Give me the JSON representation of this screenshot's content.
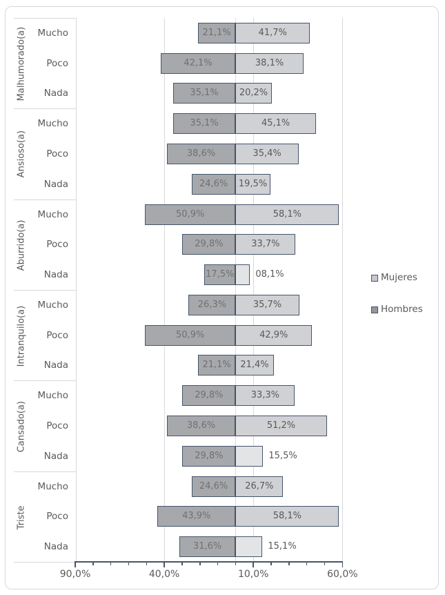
{
  "chart_data": {
    "type": "bar",
    "variant": "horizontal-diverging-tornado",
    "title": "",
    "legend": [
      {
        "label": "Mujeres",
        "color": "#D0D1D4",
        "side": "right"
      },
      {
        "label": "Hombres",
        "color": "#A7A8AB",
        "side": "left"
      }
    ],
    "legend_position": "right",
    "grid": true,
    "x_axis": {
      "range": [
        -90,
        60
      ],
      "minor_unit": 10,
      "tick_values": [
        -90,
        -40,
        10,
        60
      ],
      "tick_labels": [
        "90,0%",
        "40,0%",
        "10,0%",
        "60,0%"
      ],
      "gridline_values": [
        -40,
        0,
        10,
        60
      ]
    },
    "groups": [
      {
        "label": "Malhumorado(a)",
        "rows": [
          {
            "label": "Mucho",
            "hombres": 21.1,
            "hombres_label": "21,1%",
            "mujeres": 41.7,
            "mujeres_label": "41,7%",
            "mujeres_label_outside": false,
            "mujeres_light": false
          },
          {
            "label": "Poco",
            "hombres": 42.1,
            "hombres_label": "42,1%",
            "mujeres": 38.1,
            "mujeres_label": "38,1%",
            "mujeres_label_outside": false,
            "mujeres_light": false
          },
          {
            "label": "Nada",
            "hombres": 35.1,
            "hombres_label": "35,1%",
            "mujeres": 20.2,
            "mujeres_label": "20,2%",
            "mujeres_label_outside": false,
            "mujeres_light": false
          }
        ]
      },
      {
        "label": "Ansioso(a)",
        "rows": [
          {
            "label": "Mucho",
            "hombres": 35.1,
            "hombres_label": "35,1%",
            "mujeres": 45.1,
            "mujeres_label": "45,1%",
            "mujeres_label_outside": false,
            "mujeres_light": false
          },
          {
            "label": "Poco",
            "hombres": 38.6,
            "hombres_label": "38,6%",
            "mujeres": 35.4,
            "mujeres_label": "35,4%",
            "mujeres_label_outside": false,
            "mujeres_light": false
          },
          {
            "label": "Nada",
            "hombres": 24.6,
            "hombres_label": "24,6%",
            "mujeres": 19.5,
            "mujeres_label": "19,5%",
            "mujeres_label_outside": false,
            "mujeres_light": false
          }
        ]
      },
      {
        "label": "Aburrido(a)",
        "rows": [
          {
            "label": "Mucho",
            "hombres": 50.9,
            "hombres_label": "50,9%",
            "mujeres": 58.1,
            "mujeres_label": "58,1%",
            "mujeres_label_outside": false,
            "mujeres_light": false
          },
          {
            "label": "Poco",
            "hombres": 29.8,
            "hombres_label": "29,8%",
            "mujeres": 33.7,
            "mujeres_label": "33,7%",
            "mujeres_label_outside": false,
            "mujeres_light": false
          },
          {
            "label": "Nada",
            "hombres": 17.5,
            "hombres_label": "17,5%",
            "mujeres": 8.1,
            "mujeres_label": "08,1%",
            "mujeres_label_outside": true,
            "mujeres_light": true
          }
        ]
      },
      {
        "label": "Intranquilo(a)",
        "rows": [
          {
            "label": "Mucho",
            "hombres": 26.3,
            "hombres_label": "26,3%",
            "mujeres": 35.7,
            "mujeres_label": "35,7%",
            "mujeres_label_outside": false,
            "mujeres_light": false
          },
          {
            "label": "Poco",
            "hombres": 50.9,
            "hombres_label": "50,9%",
            "mujeres": 42.9,
            "mujeres_label": "42,9%",
            "mujeres_label_outside": false,
            "mujeres_light": false
          },
          {
            "label": "Nada",
            "hombres": 21.1,
            "hombres_label": "21,1%",
            "mujeres": 21.4,
            "mujeres_label": "21,4%",
            "mujeres_label_outside": false,
            "mujeres_light": false
          }
        ]
      },
      {
        "label": "Cansado(a)",
        "rows": [
          {
            "label": "Mucho",
            "hombres": 29.8,
            "hombres_label": "29,8%",
            "mujeres": 33.3,
            "mujeres_label": "33,3%",
            "mujeres_label_outside": false,
            "mujeres_light": false
          },
          {
            "label": "Poco",
            "hombres": 38.6,
            "hombres_label": "38,6%",
            "mujeres": 51.2,
            "mujeres_label": "51,2%",
            "mujeres_label_outside": false,
            "mujeres_light": false
          },
          {
            "label": "Nada",
            "hombres": 29.8,
            "hombres_label": "29,8%",
            "mujeres": 15.5,
            "mujeres_label": "15,5%",
            "mujeres_label_outside": true,
            "mujeres_light": true
          }
        ]
      },
      {
        "label": "Triste",
        "rows": [
          {
            "label": "Mucho",
            "hombres": 24.6,
            "hombres_label": "24,6%",
            "mujeres": 26.7,
            "mujeres_label": "26,7%",
            "mujeres_label_outside": false,
            "mujeres_light": false
          },
          {
            "label": "Poco",
            "hombres": 43.9,
            "hombres_label": "43,9%",
            "mujeres": 58.1,
            "mujeres_label": "58,1%",
            "mujeres_label_outside": false,
            "mujeres_light": false
          },
          {
            "label": "Nada",
            "hombres": 31.6,
            "hombres_label": "31,6%",
            "mujeres": 15.1,
            "mujeres_label": "15,1%",
            "mujeres_label_outside": true,
            "mujeres_light": true
          }
        ]
      }
    ]
  },
  "colors": {
    "bar_border": "#44546A",
    "hombres_fill": "#A7A8AB",
    "mujeres_fill": "#D0D1D4",
    "mujeres_fill_light": "#E3E4E6",
    "gridline": "#D9D9D9",
    "panel_line": "#D9D9D9",
    "axis_line": "#44546A",
    "text": "#595959",
    "bar_label_dark": "#6E7074",
    "frame_border": "#D5D8DC"
  }
}
